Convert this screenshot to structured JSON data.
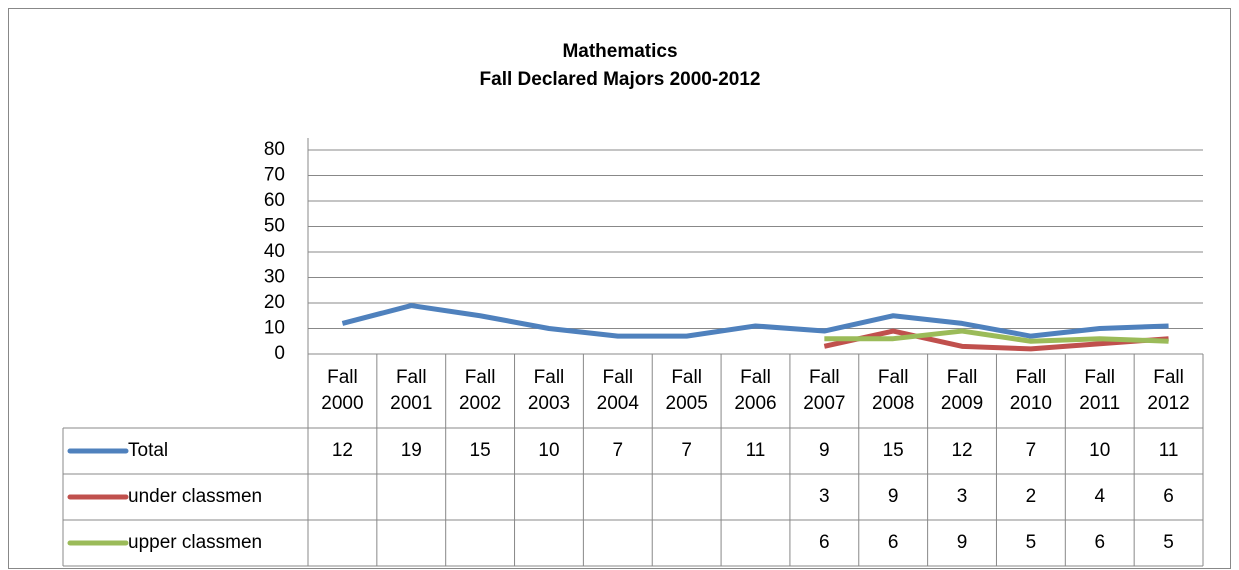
{
  "chart_data": {
    "type": "line",
    "title": "Mathematics",
    "subtitle": "Fall Declared Majors 2000-2012",
    "categories": [
      "Fall 2000",
      "Fall 2001",
      "Fall 2002",
      "Fall 2003",
      "Fall 2004",
      "Fall 2005",
      "Fall 2006",
      "Fall 2007",
      "Fall 2008",
      "Fall 2009",
      "Fall 2010",
      "Fall 2011",
      "Fall 2012"
    ],
    "series": [
      {
        "name": "Total",
        "color": "#4f81bd",
        "values": [
          12,
          19,
          15,
          10,
          7,
          7,
          11,
          9,
          15,
          12,
          7,
          10,
          11
        ]
      },
      {
        "name": "under classmen",
        "color": "#c0504d",
        "values": [
          null,
          null,
          null,
          null,
          null,
          null,
          null,
          3,
          9,
          3,
          2,
          4,
          6
        ]
      },
      {
        "name": "upper classmen",
        "color": "#9bbb59",
        "values": [
          null,
          null,
          null,
          null,
          null,
          null,
          null,
          6,
          6,
          9,
          5,
          6,
          5
        ]
      }
    ],
    "ylim": [
      0,
      80
    ],
    "yticks": [
      0,
      10,
      20,
      30,
      40,
      50,
      60,
      70,
      80
    ],
    "grid": true
  }
}
